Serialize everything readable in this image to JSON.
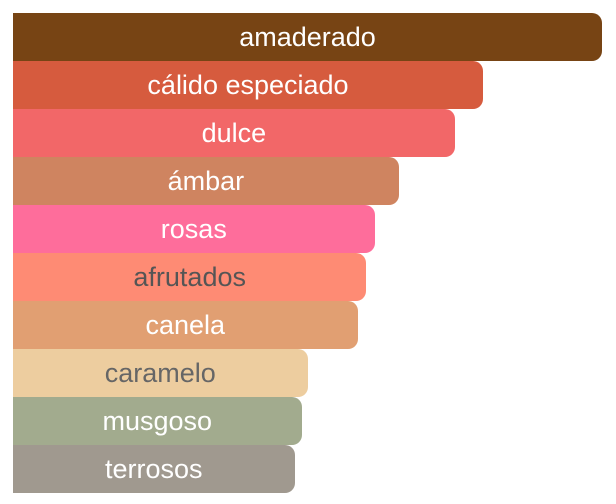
{
  "chart_data": {
    "type": "bar",
    "orientation": "horizontal",
    "categories": [
      "amaderado",
      "cálido especiado",
      "dulce",
      "ámbar",
      "rosas",
      "afrutados",
      "canela",
      "caramelo",
      "musgoso",
      "terrosos"
    ],
    "values": [
      100,
      79.8,
      75,
      65.5,
      61.4,
      60,
      58.5,
      50,
      49,
      47.8
    ],
    "colors": [
      "#774414",
      "#d65b3e",
      "#f26768",
      "#cf8460",
      "#fe6d9b",
      "#fe8b74",
      "#e19f72",
      "#edcd9f",
      "#a2ab8e",
      "#a0998f"
    ],
    "label_colors": [
      "#ffffff",
      "#ffffff",
      "#ffffff",
      "#ffffff",
      "#ffffff",
      "#555555",
      "#ffffff",
      "#666666",
      "#ffffff",
      "#ffffff"
    ],
    "xlim": [
      0,
      100
    ],
    "grid": false
  }
}
